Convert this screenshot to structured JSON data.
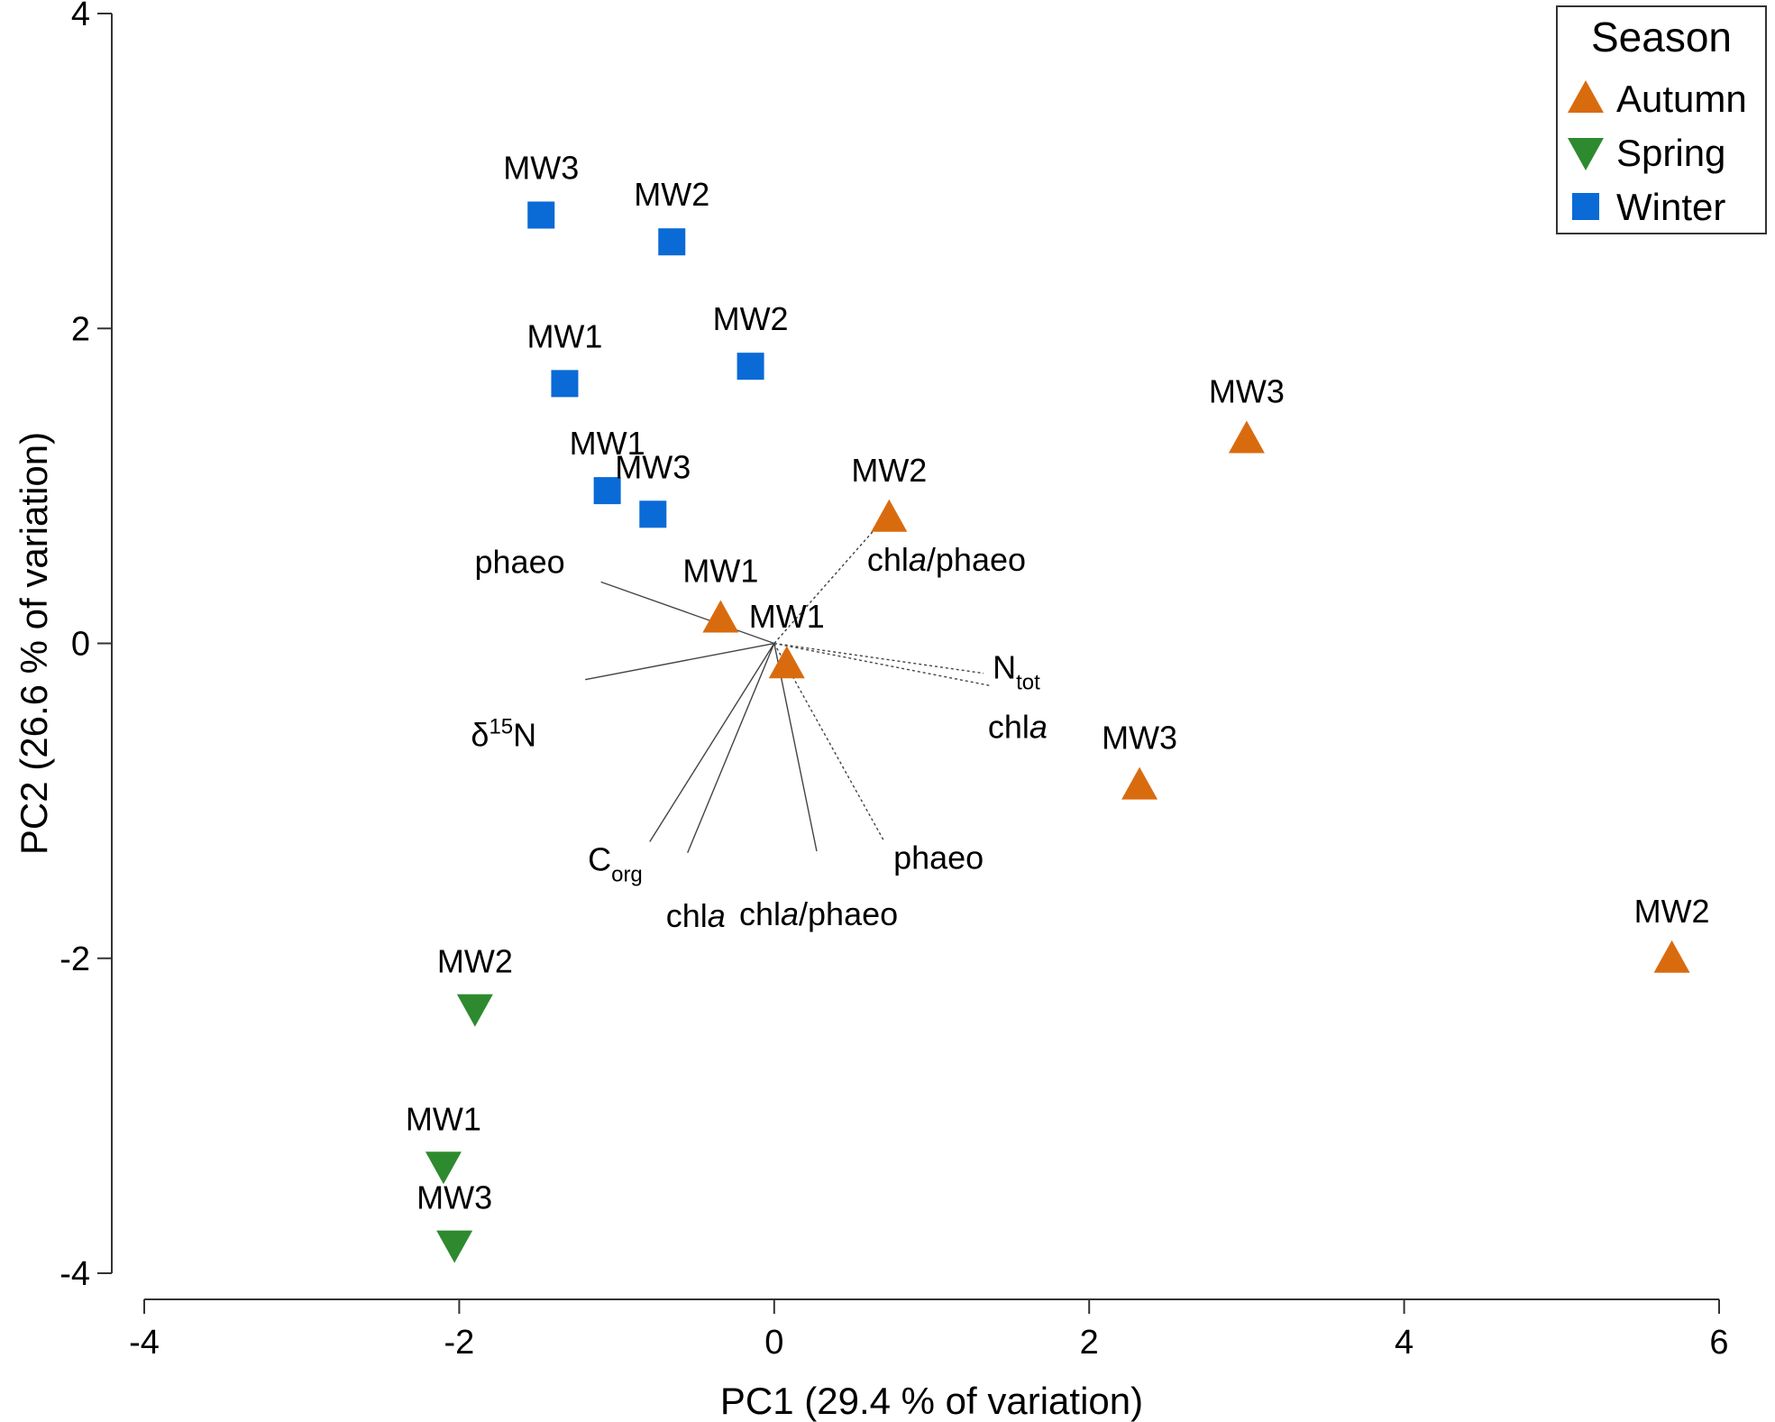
{
  "chart_data": {
    "type": "scatter",
    "title": "",
    "xlabel": "PC1 (29.4 % of variation)",
    "ylabel": "PC2 (26.6 % of variation)",
    "xlim": [
      -4,
      6
    ],
    "ylim": [
      -4,
      4
    ],
    "xticks": [
      "-4",
      "-2",
      "0",
      "2",
      "4",
      "6"
    ],
    "yticks": [
      "-4",
      "-2",
      "0",
      "2",
      "4"
    ],
    "legend": {
      "title": "Season",
      "position": "top-right",
      "entries": [
        {
          "name": "Autumn",
          "shape": "triangle-up",
          "color": "#D96B0F"
        },
        {
          "name": "Spring",
          "shape": "triangle-down",
          "color": "#2E8A2E"
        },
        {
          "name": "Winter",
          "shape": "square",
          "color": "#0A6AD6"
        }
      ]
    },
    "series": [
      {
        "name": "Autumn",
        "shape": "triangle-up",
        "color": "#D96B0F",
        "points": [
          {
            "label": "MW3",
            "x": 3.0,
            "y": 1.3
          },
          {
            "label": "MW2",
            "x": 0.73,
            "y": 0.8
          },
          {
            "label": "MW1",
            "x": -0.34,
            "y": 0.16
          },
          {
            "label": "MW1",
            "x": 0.08,
            "y": -0.13
          },
          {
            "label": "MW3",
            "x": 2.32,
            "y": -0.9
          },
          {
            "label": "MW2",
            "x": 5.7,
            "y": -2.0
          }
        ]
      },
      {
        "name": "Spring",
        "shape": "triangle-down",
        "color": "#2E8A2E",
        "points": [
          {
            "label": "MW2",
            "x": -1.9,
            "y": -2.32
          },
          {
            "label": "MW1",
            "x": -2.1,
            "y": -3.32
          },
          {
            "label": "MW3",
            "x": -2.03,
            "y": -3.82
          }
        ]
      },
      {
        "name": "Winter",
        "shape": "square",
        "color": "#0A6AD6",
        "points": [
          {
            "label": "MW3",
            "x": -1.48,
            "y": 2.72
          },
          {
            "label": "MW2",
            "x": -0.65,
            "y": 2.55
          },
          {
            "label": "MW1",
            "x": -1.33,
            "y": 1.65
          },
          {
            "label": "MW2",
            "x": -0.15,
            "y": 1.76
          },
          {
            "label": "MW1",
            "x": -1.06,
            "y": 0.97
          },
          {
            "label": "MW3",
            "x": -0.77,
            "y": 0.82
          }
        ]
      }
    ],
    "vectors": [
      {
        "name": "phaeo",
        "sub": "",
        "italic_a": false,
        "x": -1.1,
        "y": 0.39,
        "style": "solid"
      },
      {
        "name": "δ",
        "sup": "15",
        "after": "N",
        "x": -1.2,
        "y": -0.23,
        "style": "solid"
      },
      {
        "name": "C",
        "sub": "org",
        "x": -0.79,
        "y": -1.26,
        "style": "solid"
      },
      {
        "name": "chl",
        "italic": "a",
        "x": -0.55,
        "y": -1.33,
        "style": "solid"
      },
      {
        "name": "chl",
        "italic": "a",
        "after": "/phaeo",
        "x": 0.27,
        "y": -1.32,
        "style": "solid"
      },
      {
        "name": "phaeo",
        "x": 0.7,
        "y": -1.26,
        "style": "dotted"
      },
      {
        "name": "chl",
        "italic": "a",
        "after": "/phaeo",
        "x": 0.67,
        "y": 0.76,
        "style": "dotted"
      },
      {
        "name": "N",
        "sub": "tot",
        "x": 1.33,
        "y": -0.19,
        "style": "dotted"
      },
      {
        "name": "chl",
        "italic": "a",
        "x": 1.38,
        "y": -0.27,
        "style": "dotted"
      }
    ]
  }
}
